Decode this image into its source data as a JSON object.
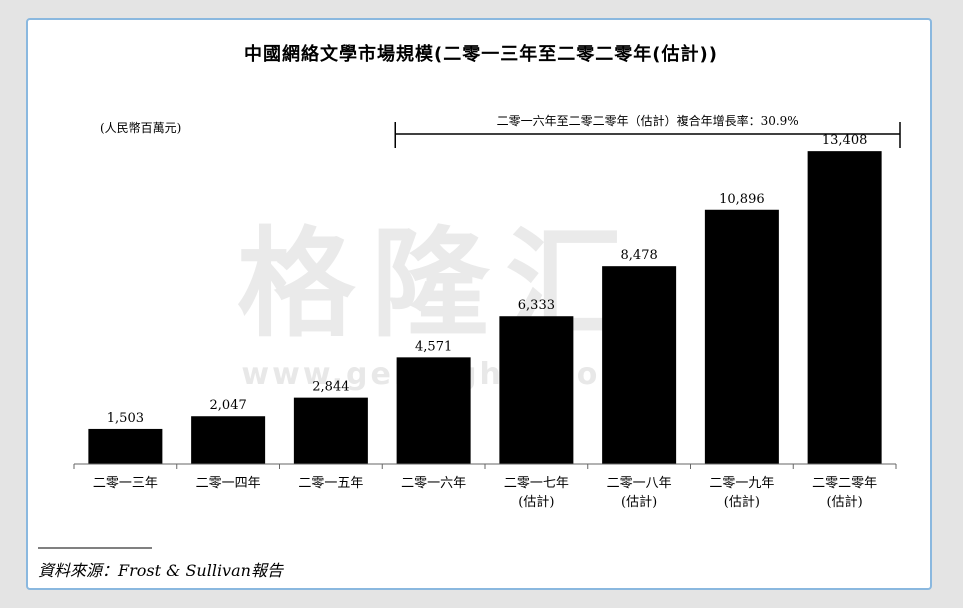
{
  "watermark": {
    "main": "格隆汇",
    "url": "www.gelonghui.com"
  },
  "source": "資料來源：Frost & Sullivan報告",
  "colors": {
    "bar": "#000000",
    "panel_border": "#8ab8df"
  },
  "chart_data": {
    "type": "bar",
    "title": "中國網絡文學市場規模(二零一三年至二零二零年(估計))",
    "unit_label": "(人民幣百萬元)",
    "annotation": "二零一六年至二零二零年（估計）複合年增長率：30.9%",
    "annotation_span": [
      "二零一六年",
      "二零二零年"
    ],
    "categories": [
      [
        "二零一三年"
      ],
      [
        "二零一四年"
      ],
      [
        "二零一五年"
      ],
      [
        "二零一六年"
      ],
      [
        "二零一七年",
        "(估計)"
      ],
      [
        "二零一八年",
        "(估計)"
      ],
      [
        "二零一九年",
        "(估計)"
      ],
      [
        "二零二零年",
        "(估計)"
      ]
    ],
    "values": [
      1503,
      2047,
      2844,
      4571,
      6333,
      8478,
      10896,
      13408
    ],
    "value_labels": [
      "1,503",
      "2,047",
      "2,844",
      "4,571",
      "6,333",
      "8,478",
      "10,896",
      "13,408"
    ],
    "ylim": [
      0,
      15000
    ],
    "grid": false,
    "legend": "none"
  }
}
